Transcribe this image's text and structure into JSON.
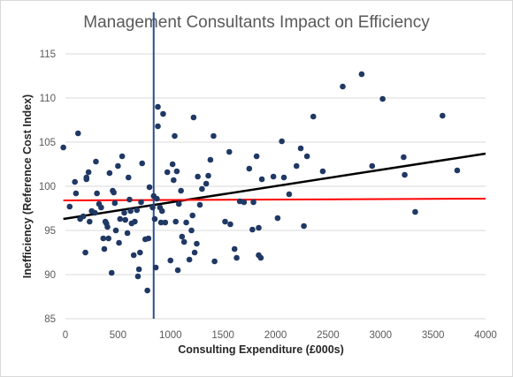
{
  "chart_data": {
    "type": "scatter",
    "title": "Management Consultants Impact on Efficiency",
    "xlabel": "Consulting Expenditure (£000s)",
    "ylabel": "Inefficiency (Reference Cost Index)",
    "xlim": [
      0,
      4000
    ],
    "ylim": [
      85,
      115
    ],
    "xticks": [
      0,
      500,
      1000,
      1500,
      2000,
      2500,
      3000,
      3500,
      4000
    ],
    "yticks": [
      85,
      90,
      95,
      100,
      105,
      110,
      115
    ],
    "grid": "horizontal",
    "colors": {
      "points": "#1f3864",
      "trend": "#000000",
      "reference": "#ff0000",
      "vertical": "#2f4f8f",
      "grid": "#d9d9d9"
    },
    "series": [
      {
        "points": [
          [
            -20,
            104.4
          ],
          [
            40,
            97.7
          ],
          [
            90,
            100.5
          ],
          [
            100,
            99.2
          ],
          [
            120,
            106.0
          ],
          [
            140,
            96.3
          ],
          [
            170,
            96.6
          ],
          [
            190,
            92.5
          ],
          [
            200,
            100.8
          ],
          [
            200,
            101.0
          ],
          [
            220,
            101.6
          ],
          [
            230,
            96.0
          ],
          [
            250,
            97.2
          ],
          [
            280,
            97.0
          ],
          [
            290,
            102.8
          ],
          [
            300,
            99.2
          ],
          [
            320,
            98.0
          ],
          [
            340,
            97.6
          ],
          [
            360,
            94.1
          ],
          [
            370,
            92.9
          ],
          [
            380,
            96.0
          ],
          [
            390,
            95.8
          ],
          [
            400,
            95.4
          ],
          [
            410,
            94.1
          ],
          [
            420,
            101.5
          ],
          [
            440,
            90.2
          ],
          [
            450,
            99.5
          ],
          [
            460,
            99.3
          ],
          [
            470,
            98.1
          ],
          [
            480,
            95.0
          ],
          [
            500,
            102.3
          ],
          [
            510,
            93.6
          ],
          [
            520,
            96.3
          ],
          [
            540,
            103.4
          ],
          [
            560,
            97.0
          ],
          [
            570,
            96.2
          ],
          [
            590,
            94.7
          ],
          [
            600,
            101.0
          ],
          [
            610,
            98.5
          ],
          [
            620,
            97.2
          ],
          [
            630,
            95.8
          ],
          [
            650,
            92.2
          ],
          [
            660,
            96.0
          ],
          [
            680,
            97.3
          ],
          [
            690,
            89.8
          ],
          [
            700,
            90.6
          ],
          [
            710,
            92.5
          ],
          [
            720,
            98.2
          ],
          [
            730,
            102.6
          ],
          [
            760,
            94.0
          ],
          [
            780,
            88.2
          ],
          [
            790,
            94.1
          ],
          [
            800,
            99.9
          ],
          [
            830,
            97.6
          ],
          [
            840,
            98.9
          ],
          [
            850,
            96.3
          ],
          [
            860,
            90.8
          ],
          [
            870,
            98.6
          ],
          [
            880,
            109.0
          ],
          [
            880,
            106.8
          ],
          [
            900,
            97.6
          ],
          [
            910,
            95.9
          ],
          [
            920,
            97.2
          ],
          [
            930,
            108.2
          ],
          [
            950,
            95.9
          ],
          [
            970,
            101.6
          ],
          [
            1000,
            91.6
          ],
          [
            1020,
            102.5
          ],
          [
            1030,
            100.7
          ],
          [
            1040,
            105.7
          ],
          [
            1050,
            96.0
          ],
          [
            1060,
            101.7
          ],
          [
            1070,
            90.5
          ],
          [
            1080,
            98.0
          ],
          [
            1100,
            99.5
          ],
          [
            1110,
            94.3
          ],
          [
            1130,
            93.7
          ],
          [
            1150,
            95.9
          ],
          [
            1180,
            91.7
          ],
          [
            1200,
            95.0
          ],
          [
            1210,
            96.7
          ],
          [
            1220,
            107.8
          ],
          [
            1230,
            92.5
          ],
          [
            1250,
            93.5
          ],
          [
            1260,
            101.1
          ],
          [
            1280,
            97.9
          ],
          [
            1300,
            99.7
          ],
          [
            1340,
            100.3
          ],
          [
            1360,
            101.2
          ],
          [
            1380,
            103.0
          ],
          [
            1410,
            105.7
          ],
          [
            1420,
            91.5
          ],
          [
            1520,
            96.0
          ],
          [
            1560,
            103.9
          ],
          [
            1570,
            95.7
          ],
          [
            1610,
            92.9
          ],
          [
            1630,
            91.9
          ],
          [
            1660,
            98.3
          ],
          [
            1700,
            98.2
          ],
          [
            1750,
            102.0
          ],
          [
            1780,
            95.1
          ],
          [
            1790,
            98.2
          ],
          [
            1820,
            103.4
          ],
          [
            1840,
            92.2
          ],
          [
            1840,
            95.3
          ],
          [
            1860,
            91.9
          ],
          [
            1870,
            100.8
          ],
          [
            1980,
            101.1
          ],
          [
            2020,
            96.4
          ],
          [
            2060,
            105.1
          ],
          [
            2080,
            101.0
          ],
          [
            2130,
            99.1
          ],
          [
            2200,
            102.3
          ],
          [
            2240,
            104.3
          ],
          [
            2270,
            95.5
          ],
          [
            2300,
            103.4
          ],
          [
            2360,
            107.9
          ],
          [
            2450,
            101.7
          ],
          [
            2640,
            111.3
          ],
          [
            2820,
            112.7
          ],
          [
            2920,
            102.3
          ],
          [
            3020,
            109.9
          ],
          [
            3220,
            103.3
          ],
          [
            3230,
            101.3
          ],
          [
            3330,
            97.1
          ],
          [
            3590,
            108.0
          ],
          [
            3730,
            101.8
          ]
        ]
      }
    ],
    "lines": [
      {
        "kind": "trend",
        "from": [
          -20,
          96.3
        ],
        "to": [
          4000,
          103.7
        ]
      },
      {
        "kind": "reference",
        "from": [
          -20,
          98.4
        ],
        "to": [
          4000,
          98.6
        ]
      },
      {
        "kind": "vertical",
        "x": 840
      }
    ]
  }
}
